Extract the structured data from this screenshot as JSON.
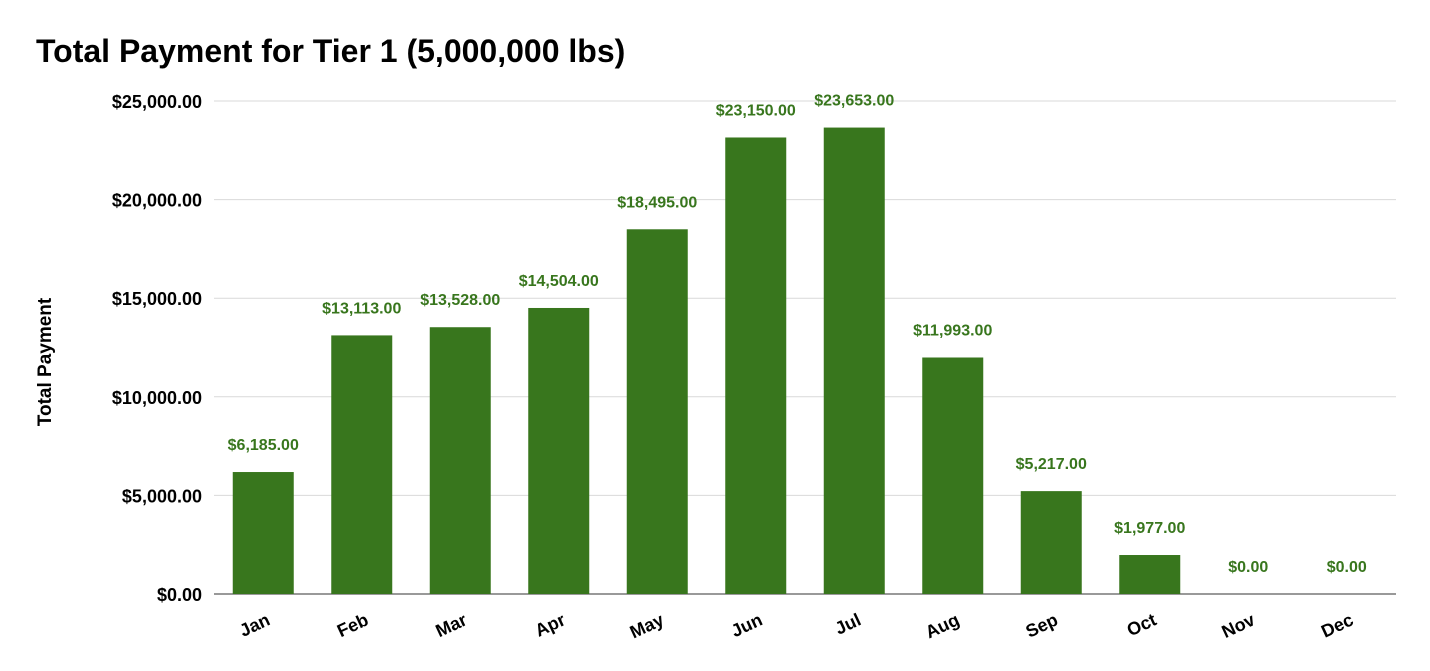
{
  "chart_data": {
    "type": "bar",
    "title": "Total Payment for Tier 1 (5,000,000 lbs)",
    "ylabel": "Total Payment",
    "xlabel": "",
    "categories": [
      "Jan",
      "Feb",
      "Mar",
      "Apr",
      "May",
      "Jun",
      "Jul",
      "Aug",
      "Sep",
      "Oct",
      "Nov",
      "Dec"
    ],
    "values": [
      6185,
      13113,
      13528,
      14504,
      18495,
      23150,
      23653,
      11993,
      5217,
      1977,
      0,
      0
    ],
    "data_labels": [
      "$6,185.00",
      "$13,113.00",
      "$13,528.00",
      "$14,504.00",
      "$18,495.00",
      "$23,150.00",
      "$23,653.00",
      "$11,993.00",
      "$5,217.00",
      "$1,977.00",
      "$0.00",
      "$0.00"
    ],
    "ylim": [
      0,
      25000
    ],
    "yticks": [
      0,
      5000,
      10000,
      15000,
      20000,
      25000
    ],
    "ytick_labels": [
      "$0.00",
      "$5,000.00",
      "$10,000.00",
      "$15,000.00",
      "$20,000.00",
      "$25,000.00"
    ],
    "grid": true,
    "legend": "none",
    "bar_color": "#38761d",
    "label_color": "#38761d"
  }
}
